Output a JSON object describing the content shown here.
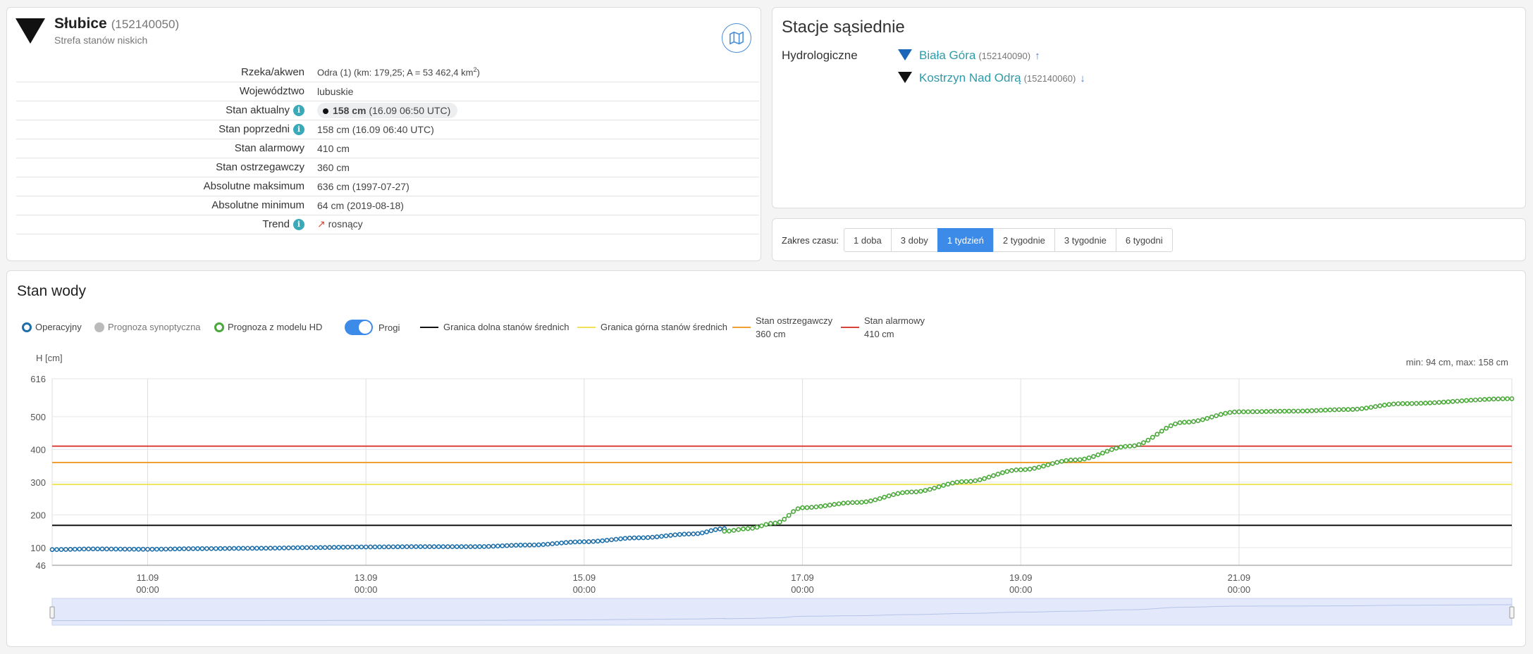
{
  "station": {
    "name": "Słubice",
    "code": "(152140050)",
    "zone": "Strefa stanów niskich",
    "map_icon": "map-icon",
    "info_icon": "i",
    "rows": {
      "river_label": "Rzeka/akwen",
      "river_value": "Odra (1) (km: 179,25; A = 53 462,4 km",
      "river_sup": "2",
      "river_close": ")",
      "voivodeship_label": "Województwo",
      "voivodeship_value": "lubuskie",
      "current_label": "Stan aktualny",
      "current_value": "158 cm",
      "current_time": "(16.09 06:50 UTC)",
      "previous_label": "Stan poprzedni",
      "previous_value": "158 cm (16.09 06:40 UTC)",
      "alarm_label": "Stan alarmowy",
      "alarm_value": "410 cm",
      "warning_label": "Stan ostrzegawczy",
      "warning_value": "360 cm",
      "abs_max_label": "Absolutne maksimum",
      "abs_max_value": "636 cm (1997-07-27)",
      "abs_min_label": "Absolutne minimum",
      "abs_min_value": "64 cm (2019-08-18)",
      "trend_label": "Trend",
      "trend_arrow": "↗",
      "trend_value": "rosnący"
    }
  },
  "neighbors": {
    "title": "Stacje sąsiednie",
    "group_label": "Hydrologiczne",
    "items": [
      {
        "name": "Biała Góra",
        "code": "(152140090)",
        "arrow": "↑",
        "color": "#1a66b8"
      },
      {
        "name": "Kostrzyn Nad Odrą",
        "code": "(152140060)",
        "arrow": "↓",
        "color": "#111111"
      }
    ]
  },
  "time_range": {
    "label": "Zakres czasu:",
    "options": [
      "1 doba",
      "3 doby",
      "1 tydzień",
      "2 tygodnie",
      "3 tygodnie",
      "6 tygodni"
    ],
    "active": "1 tydzień"
  },
  "chart_panel": {
    "title": "Stan wody",
    "legend": {
      "operational": "Operacyjny",
      "synoptic": "Prognoza synoptyczna",
      "hd_model": "Prognoza z modelu HD",
      "thresholds_toggle": "Progi",
      "lower_mid": "Granica dolna stanów średnich",
      "upper_mid": "Granica górna stanów średnich",
      "warning": "Stan ostrzegawczy",
      "warning_value": "360 cm",
      "alarm": "Stan alarmowy",
      "alarm_value": "410 cm"
    },
    "y_title": "H [cm]",
    "minmax": "min: 94 cm, max: 158 cm"
  },
  "chart_data": {
    "type": "line",
    "ylabel": "H [cm]",
    "ylim": [
      46,
      616
    ],
    "y_ticks": [
      616,
      500,
      400,
      300,
      200,
      100,
      46
    ],
    "x_range_days": [
      "2024-09-10 03:00",
      "2024-09-23 12:00"
    ],
    "x_ticks": [
      {
        "date": "11.09",
        "time": "00:00",
        "day": 11
      },
      {
        "date": "13.09",
        "time": "00:00",
        "day": 13
      },
      {
        "date": "15.09",
        "time": "00:00",
        "day": 15
      },
      {
        "date": "17.09",
        "time": "00:00",
        "day": 17
      },
      {
        "date": "19.09",
        "time": "00:00",
        "day": 19
      },
      {
        "date": "21.09",
        "time": "00:00",
        "day": 21
      }
    ],
    "thresholds": [
      {
        "name": "Granica dolna stanów średnich",
        "value": 168,
        "color": "#111111"
      },
      {
        "name": "Granica górna stanów średnich",
        "value": 293,
        "color": "#f2e25a"
      },
      {
        "name": "Stan ostrzegawczy",
        "value": 360,
        "color": "#f0a030"
      },
      {
        "name": "Stan alarmowy",
        "value": 410,
        "color": "#d9433a"
      }
    ],
    "series": [
      {
        "name": "Operacyjny",
        "color": "#1f6fa8",
        "points": [
          [
            "10.09 03:00",
            94
          ],
          [
            "10.09 12:00",
            96
          ],
          [
            "11.09 00:00",
            95
          ],
          [
            "11.09 12:00",
            97
          ],
          [
            "12.09 00:00",
            98
          ],
          [
            "12.09 12:00",
            100
          ],
          [
            "13.09 00:00",
            102
          ],
          [
            "13.09 12:00",
            103
          ],
          [
            "14.09 00:00",
            103
          ],
          [
            "14.09 12:00",
            108
          ],
          [
            "15.09 00:00",
            118
          ],
          [
            "15.09 12:00",
            130
          ],
          [
            "16.09 00:00",
            142
          ],
          [
            "16.09 06:50",
            158
          ]
        ]
      },
      {
        "name": "Prognoza z modelu HD",
        "color": "#4aa83a",
        "points": [
          [
            "16.09 06:50",
            150
          ],
          [
            "16.09 12:00",
            158
          ],
          [
            "16.09 18:00",
            175
          ],
          [
            "17.09 00:00",
            222
          ],
          [
            "17.09 12:00",
            238
          ],
          [
            "18.09 00:00",
            270
          ],
          [
            "18.09 12:00",
            302
          ],
          [
            "19.09 00:00",
            338
          ],
          [
            "19.09 12:00",
            368
          ],
          [
            "20.09 00:00",
            410
          ],
          [
            "20.09 12:00",
            483
          ],
          [
            "21.09 00:00",
            515
          ],
          [
            "21.09 12:00",
            517
          ],
          [
            "22.09 00:00",
            522
          ],
          [
            "22.09 12:00",
            540
          ],
          [
            "23.09 12:00",
            555
          ]
        ]
      }
    ]
  }
}
